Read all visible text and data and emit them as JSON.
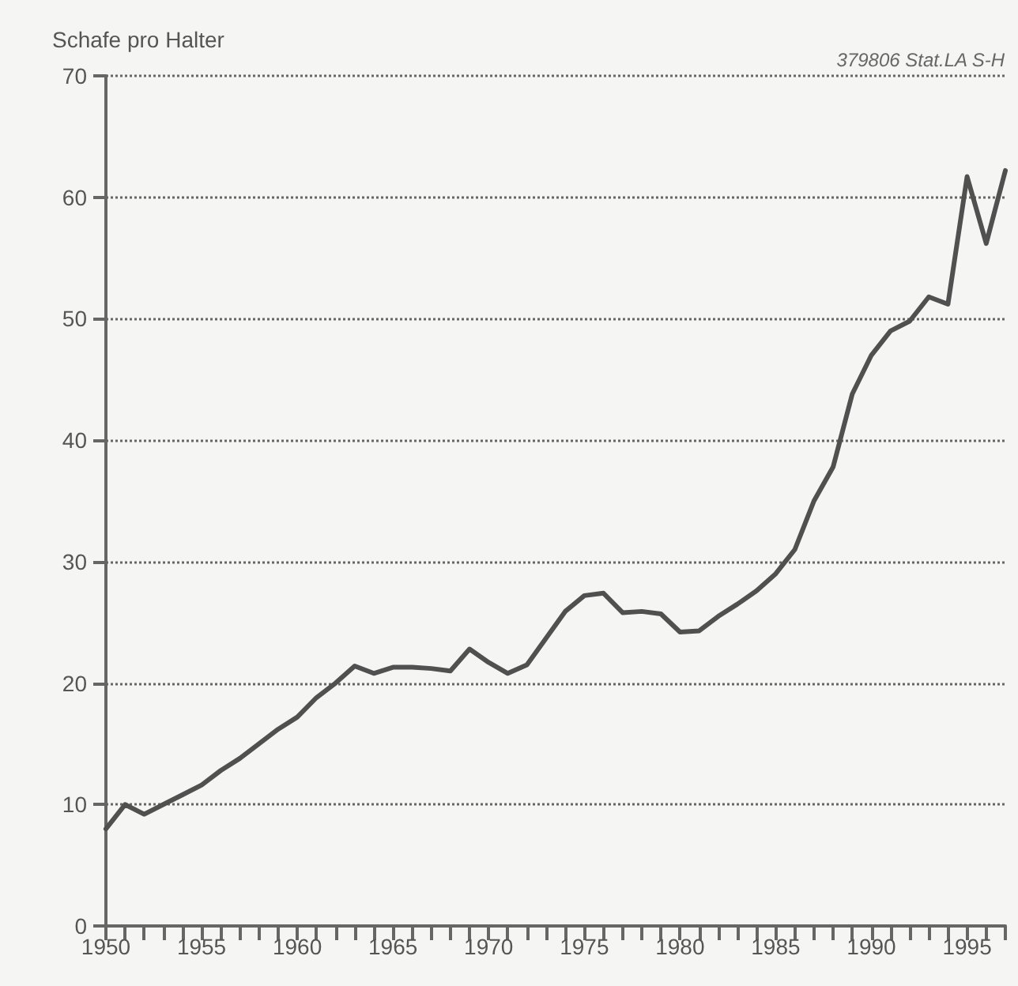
{
  "chart_data": {
    "type": "line",
    "ylabel": "Schafe pro Halter",
    "annotations": [
      "379806 Stat.LA S-H"
    ],
    "x": [
      1950,
      1951,
      1952,
      1953,
      1954,
      1955,
      1956,
      1957,
      1958,
      1959,
      1960,
      1961,
      1962,
      1963,
      1964,
      1965,
      1966,
      1967,
      1968,
      1969,
      1970,
      1971,
      1972,
      1973,
      1974,
      1975,
      1976,
      1977,
      1978,
      1979,
      1980,
      1981,
      1982,
      1983,
      1984,
      1985,
      1986,
      1987,
      1988,
      1989,
      1990,
      1991,
      1992,
      1993,
      1994,
      1995,
      1996,
      1997
    ],
    "series": [
      {
        "color": "#505050",
        "values": [
          8.0,
          10.0,
          9.2,
          10.0,
          10.8,
          11.6,
          12.8,
          13.8,
          15.0,
          16.2,
          17.2,
          18.8,
          20.0,
          21.4,
          20.8,
          21.3,
          21.3,
          21.2,
          21.0,
          22.8,
          21.7,
          20.8,
          21.5,
          23.7,
          25.9,
          27.2,
          27.4,
          25.8,
          25.9,
          25.7,
          24.2,
          24.3,
          25.5,
          26.5,
          27.6,
          29.0,
          31.0,
          35.0,
          37.8,
          43.8,
          47.0,
          49.0,
          49.8,
          51.8,
          51.2,
          61.7,
          56.2,
          62.2
        ]
      }
    ],
    "xlim": [
      1950,
      1997
    ],
    "xticks": [
      1950,
      {
        "value": 1951,
        "label": null
      },
      {
        "value": 1952,
        "label": null
      },
      {
        "value": 1953,
        "label": null
      },
      {
        "value": 1954,
        "label": null
      },
      1955,
      {
        "value": 1956,
        "label": null
      },
      {
        "value": 1957,
        "label": null
      },
      {
        "value": 1958,
        "label": null
      },
      {
        "value": 1959,
        "label": null
      },
      1960,
      {
        "value": 1961,
        "label": null
      },
      {
        "value": 1962,
        "label": null
      },
      {
        "value": 1963,
        "label": null
      },
      {
        "value": 1964,
        "label": null
      },
      1965,
      {
        "value": 1966,
        "label": null
      },
      {
        "value": 1967,
        "label": null
      },
      {
        "value": 1968,
        "label": null
      },
      {
        "value": 1969,
        "label": null
      },
      1970,
      {
        "value": 1971,
        "label": null
      },
      {
        "value": 1972,
        "label": null
      },
      {
        "value": 1973,
        "label": null
      },
      {
        "value": 1974,
        "label": null
      },
      1975,
      {
        "value": 1976,
        "label": null
      },
      {
        "value": 1977,
        "label": null
      },
      {
        "value": 1978,
        "label": null
      },
      {
        "value": 1979,
        "label": null
      },
      1980,
      {
        "value": 1981,
        "label": null
      },
      {
        "value": 1982,
        "label": null
      },
      {
        "value": 1983,
        "label": null
      },
      {
        "value": 1984,
        "label": null
      },
      1985,
      {
        "value": 1986,
        "label": null
      },
      {
        "value": 1987,
        "label": null
      },
      {
        "value": 1988,
        "label": null
      },
      {
        "value": 1989,
        "label": null
      },
      1990,
      {
        "value": 1991,
        "label": null
      },
      {
        "value": 1992,
        "label": null
      },
      {
        "value": 1993,
        "label": null
      },
      {
        "value": 1994,
        "label": null
      },
      1995,
      {
        "value": 1996,
        "label": null
      },
      {
        "value": 1997,
        "label": null
      }
    ],
    "ylim": [
      0,
      70
    ],
    "yticks": [
      0,
      10,
      20,
      30,
      40,
      50,
      60,
      70
    ],
    "grid": "y",
    "marker": "none",
    "line_style": "solid"
  }
}
